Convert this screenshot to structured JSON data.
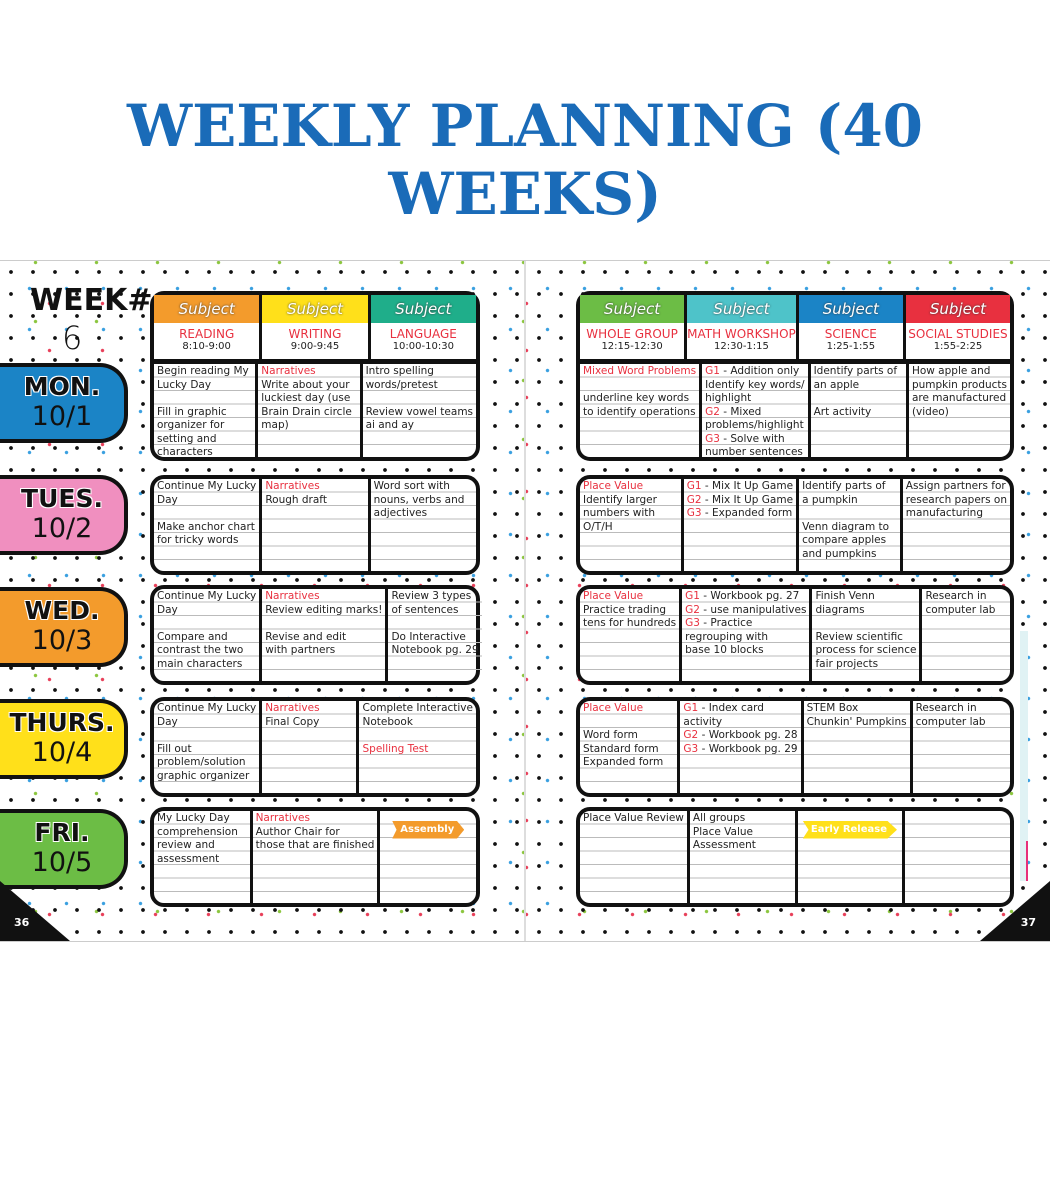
{
  "title": "WEEKLY PLANNING (40 WEEKS)",
  "week": {
    "label": "WEEK#",
    "number": "6"
  },
  "page_numbers": {
    "left": "36",
    "right": "37"
  },
  "subject_label": "Subject",
  "days": [
    {
      "name": "MON.",
      "date": "10/1",
      "color": "#1b84c6"
    },
    {
      "name": "TUES.",
      "date": "10/2",
      "color": "#f08fbf"
    },
    {
      "name": "WED.",
      "date": "10/3",
      "color": "#f39b2c"
    },
    {
      "name": "THURS.",
      "date": "10/4",
      "color": "#ffe01a"
    },
    {
      "name": "FRI.",
      "date": "10/5",
      "color": "#6cbd45"
    }
  ],
  "left_subjects": [
    {
      "name": "READING",
      "time": "8:10-9:00",
      "color": "#f39b2c"
    },
    {
      "name": "WRITING",
      "time": "9:00-9:45",
      "color": "#ffe01a"
    },
    {
      "name": "LANGUAGE",
      "time": "10:00-10:30",
      "color": "#1fae8a"
    }
  ],
  "right_subjects": [
    {
      "name": "WHOLE GROUP",
      "time": "12:15-12:30",
      "color": "#6cbd45"
    },
    {
      "name": "MATH WORKSHOP",
      "time": "12:30-1:15",
      "color": "#4ec3c9"
    },
    {
      "name": "SCIENCE",
      "time": "1:25-1:55",
      "color": "#1b84c6"
    },
    {
      "name": "SOCIAL STUDIES",
      "time": "1:55-2:25",
      "color": "#e8303f"
    }
  ],
  "badge_colors": {
    "Assembly": "#f39b2c",
    "Early Release": "#ffe01a"
  },
  "left_rows": [
    [
      [
        {
          "t": "Begin reading My"
        },
        {
          "t": "Lucky Day"
        },
        {
          "gap": true
        },
        {
          "t": "Fill in graphic"
        },
        {
          "t": "organizer for"
        },
        {
          "t": "setting and"
        },
        {
          "t": "characters"
        }
      ],
      [
        {
          "t": "Narratives",
          "red": true
        },
        {
          "t": "Write about your"
        },
        {
          "t": "luckiest day (use"
        },
        {
          "t": "Brain Drain circle"
        },
        {
          "t": "map)"
        }
      ],
      [
        {
          "t": "Intro spelling"
        },
        {
          "t": "words/pretest"
        },
        {
          "gap": true
        },
        {
          "t": "Review vowel teams"
        },
        {
          "t": "ai and ay"
        }
      ]
    ],
    [
      [
        {
          "t": "Continue My Lucky"
        },
        {
          "t": "Day"
        },
        {
          "gap": true
        },
        {
          "t": "Make anchor chart"
        },
        {
          "t": "for tricky words"
        }
      ],
      [
        {
          "t": "Narratives",
          "red": true
        },
        {
          "t": "Rough draft"
        }
      ],
      [
        {
          "t": "Word sort with"
        },
        {
          "t": "nouns, verbs and"
        },
        {
          "t": "adjectives"
        }
      ]
    ],
    [
      [
        {
          "t": "Continue My Lucky"
        },
        {
          "t": "Day"
        },
        {
          "gap": true
        },
        {
          "t": "Compare and"
        },
        {
          "t": "contrast the two"
        },
        {
          "t": "main characters"
        }
      ],
      [
        {
          "t": "Narratives",
          "red": true
        },
        {
          "t": "Review editing marks!"
        },
        {
          "gap": true
        },
        {
          "t": "Revise and edit"
        },
        {
          "t": "with partners"
        }
      ],
      [
        {
          "t": "Review 3 types"
        },
        {
          "t": "of sentences"
        },
        {
          "gap": true
        },
        {
          "t": "Do Interactive"
        },
        {
          "t": "Notebook pg. 29"
        }
      ]
    ],
    [
      [
        {
          "t": "Continue My Lucky"
        },
        {
          "t": "Day"
        },
        {
          "gap": true
        },
        {
          "t": "Fill out"
        },
        {
          "t": "problem/solution"
        },
        {
          "t": "graphic organizer"
        }
      ],
      [
        {
          "t": "Narratives",
          "red": true
        },
        {
          "t": "Final Copy"
        }
      ],
      [
        {
          "t": "Complete Interactive"
        },
        {
          "t": "Notebook"
        },
        {
          "gap": true
        },
        {
          "t": "Spelling Test",
          "red": true
        }
      ]
    ],
    [
      [
        {
          "t": "My Lucky Day"
        },
        {
          "t": "comprehension"
        },
        {
          "t": "review and"
        },
        {
          "t": "assessment"
        }
      ],
      [
        {
          "t": "Narratives",
          "red": true
        },
        {
          "t": "Author Chair for"
        },
        {
          "t": "those that are finished"
        }
      ],
      [
        {
          "badge": "Assembly"
        }
      ]
    ]
  ],
  "right_rows": [
    [
      [
        {
          "t": "Mixed Word Problems",
          "red": true
        },
        {
          "gap": true
        },
        {
          "t": "underline key words"
        },
        {
          "t": "to identify operations"
        }
      ],
      [
        {
          "p": "G1",
          "t": " - Addition only"
        },
        {
          "t": "Identify key words/"
        },
        {
          "t": "highlight"
        },
        {
          "p": "G2",
          "t": " - Mixed"
        },
        {
          "t": "problems/highlight"
        },
        {
          "p": "G3",
          "t": " - Solve with"
        },
        {
          "t": "number sentences"
        }
      ],
      [
        {
          "t": "Identify parts of"
        },
        {
          "t": "an apple"
        },
        {
          "gap": true
        },
        {
          "t": "Art activity"
        }
      ],
      [
        {
          "t": "How apple and"
        },
        {
          "t": "pumpkin products"
        },
        {
          "t": "are manufactured"
        },
        {
          "t": "(video)"
        }
      ]
    ],
    [
      [
        {
          "t": "Place Value",
          "red": true
        },
        {
          "t": "Identify larger"
        },
        {
          "t": "numbers with"
        },
        {
          "t": "O/T/H"
        }
      ],
      [
        {
          "p": "G1",
          "t": " - Mix It Up Game"
        },
        {
          "p": "G2",
          "t": " - Mix It Up Game"
        },
        {
          "p": "G3",
          "t": " - Expanded form"
        }
      ],
      [
        {
          "t": "Identify parts of"
        },
        {
          "t": "a pumpkin"
        },
        {
          "gap": true
        },
        {
          "t": "Venn diagram to"
        },
        {
          "t": "compare apples"
        },
        {
          "t": "and pumpkins"
        }
      ],
      [
        {
          "t": "Assign partners for"
        },
        {
          "t": "research papers on"
        },
        {
          "t": "manufacturing"
        }
      ]
    ],
    [
      [
        {
          "t": "Place Value",
          "red": true
        },
        {
          "t": "Practice trading"
        },
        {
          "t": "tens for hundreds"
        }
      ],
      [
        {
          "p": "G1",
          "t": " - Workbook pg. 27"
        },
        {
          "p": "G2",
          "t": " - use manipulatives"
        },
        {
          "p": "G3",
          "t": " - Practice"
        },
        {
          "t": "regrouping with"
        },
        {
          "t": "base 10 blocks"
        }
      ],
      [
        {
          "t": "Finish Venn"
        },
        {
          "t": "diagrams"
        },
        {
          "gap": true
        },
        {
          "t": "Review scientific"
        },
        {
          "t": "process for science"
        },
        {
          "t": "fair projects"
        }
      ],
      [
        {
          "t": "Research in"
        },
        {
          "t": "computer lab"
        }
      ]
    ],
    [
      [
        {
          "t": "Place Value",
          "red": true
        },
        {
          "gap": true
        },
        {
          "t": "Word form"
        },
        {
          "t": "Standard form"
        },
        {
          "t": "Expanded form"
        }
      ],
      [
        {
          "p": "G1",
          "t": " - Index card"
        },
        {
          "t": "activity"
        },
        {
          "p": "G2",
          "t": " - Workbook pg. 28"
        },
        {
          "p": "G3",
          "t": " - Workbook pg. 29"
        }
      ],
      [
        {
          "t": "STEM Box"
        },
        {
          "t": "Chunkin' Pumpkins"
        }
      ],
      [
        {
          "t": "Research in"
        },
        {
          "t": "computer lab"
        }
      ]
    ],
    [
      [
        {
          "t": "Place Value Review"
        }
      ],
      [
        {
          "t": "All groups"
        },
        {
          "t": "Place Value"
        },
        {
          "t": "Assessment"
        }
      ],
      [
        {
          "badge": "Early Release"
        }
      ],
      []
    ]
  ]
}
